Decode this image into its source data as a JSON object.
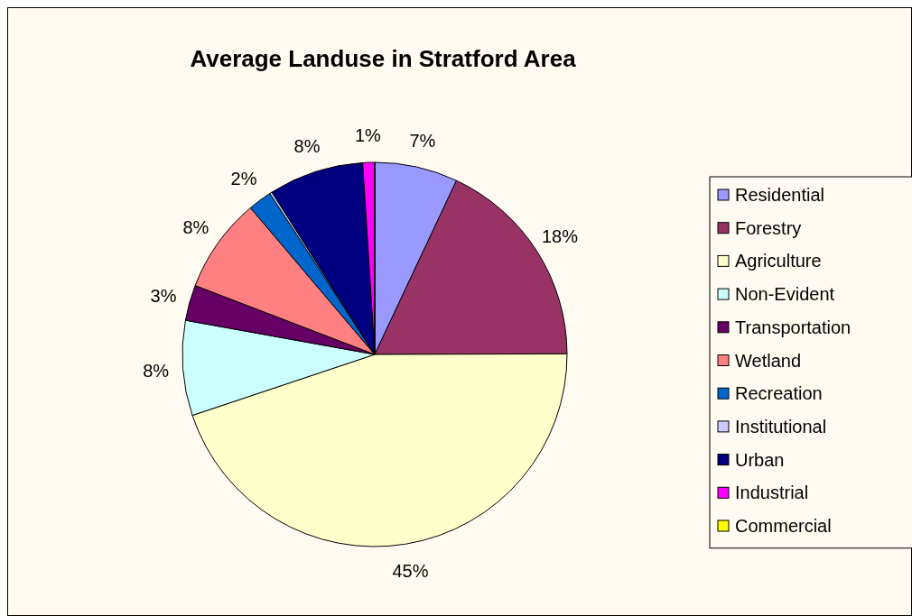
{
  "chart_data": {
    "type": "pie",
    "title": "Average Landuse in Stratford Area",
    "categories": [
      "Residential",
      "Forestry",
      "Agriculture",
      "Non-Evident",
      "Transportation",
      "Wetland",
      "Recreation",
      "Institutional",
      "Urban",
      "Industrial",
      "Commercial"
    ],
    "values": [
      7,
      18,
      45,
      8,
      3,
      8,
      2,
      0.2,
      8,
      1,
      0
    ],
    "value_labels": [
      "7%",
      "18%",
      "45%",
      "8%",
      "3%",
      "8%",
      "2%",
      null,
      "8%",
      "1%",
      null
    ],
    "colors": [
      "#9999ff",
      "#993366",
      "#ffffcc",
      "#ccffff",
      "#660066",
      "#ff8080",
      "#0066cc",
      "#ccccff",
      "#000080",
      "#ff00ff",
      "#ffff00"
    ],
    "legend": "right"
  }
}
